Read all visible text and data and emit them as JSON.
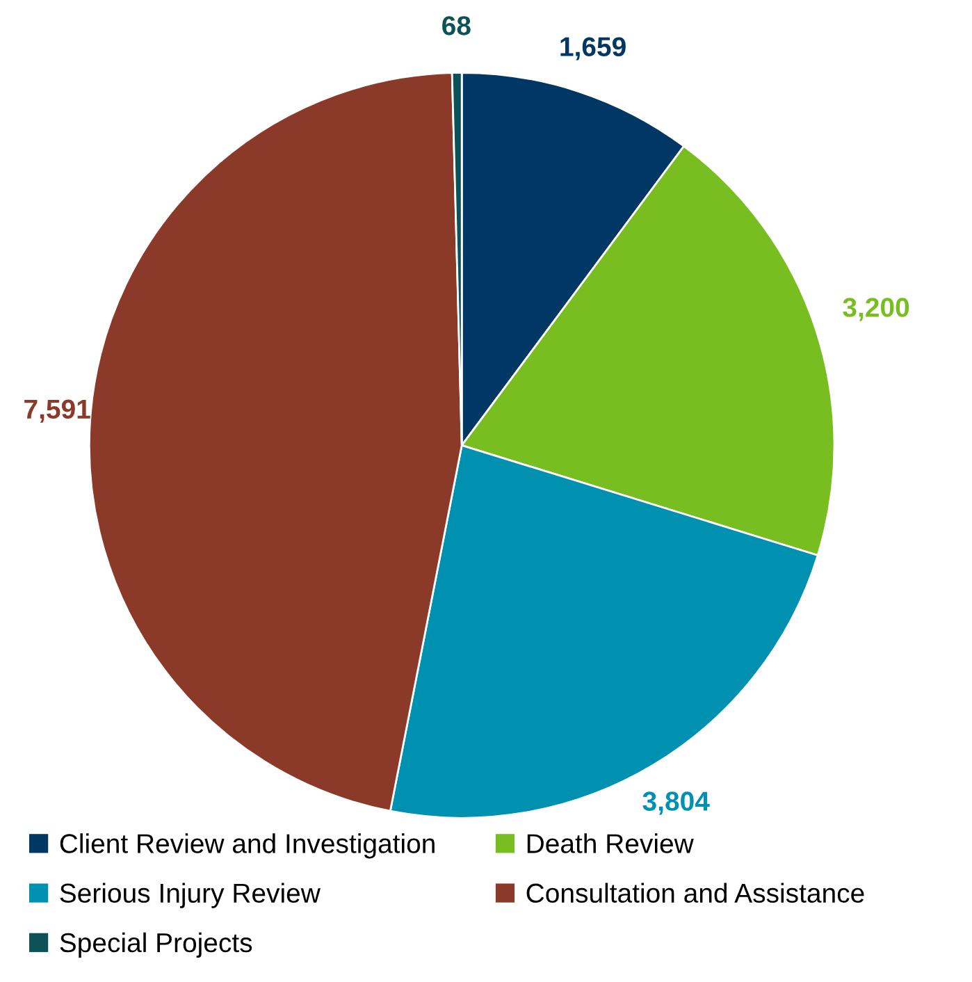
{
  "chart_data": {
    "type": "pie",
    "categories": [
      "Client Review and Investigation",
      "Death Review",
      "Serious Injury Review",
      "Consultation and Assistance",
      "Special Projects"
    ],
    "values": [
      1659,
      3200,
      3804,
      7591,
      68
    ],
    "value_labels": [
      "1,659",
      "3,200",
      "3,804",
      "7,591",
      "68"
    ],
    "colors": [
      "#003764",
      "#78be20",
      "#0090b0",
      "#8b3a2a",
      "#0d5257"
    ],
    "legend": "bottom"
  }
}
